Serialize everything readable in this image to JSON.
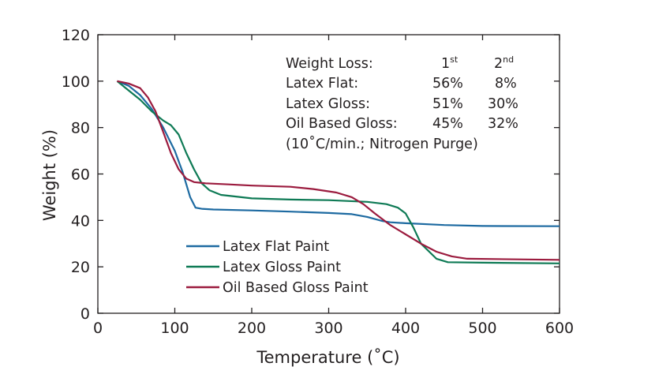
{
  "chart_data": {
    "type": "line",
    "xlabel": "Temperature (˚C)",
    "ylabel": "Weight (%)",
    "xlim": [
      0,
      600
    ],
    "ylim": [
      0,
      120
    ],
    "xticks": [
      "0",
      "100",
      "200",
      "300",
      "400",
      "500",
      "600"
    ],
    "yticks": [
      "0",
      "20",
      "40",
      "60",
      "80",
      "100",
      "120"
    ],
    "grid": false,
    "legend_position": "bottom-left",
    "series": [
      {
        "name": "Latex Flat Paint",
        "color": "#1d6aa1",
        "x": [
          25,
          40,
          55,
          70,
          85,
          100,
          110,
          120,
          127,
          135,
          150,
          200,
          250,
          300,
          330,
          350,
          370,
          380,
          400,
          450,
          500,
          600
        ],
        "y": [
          100,
          98,
          94,
          88,
          80,
          70,
          61,
          50,
          45.5,
          45,
          44.7,
          44.3,
          43.8,
          43.2,
          42.7,
          41.5,
          39.7,
          39.2,
          38.8,
          38,
          37.6,
          37.5
        ]
      },
      {
        "name": "Latex Gloss Paint",
        "color": "#0e7a55",
        "x": [
          25,
          40,
          55,
          70,
          85,
          95,
          105,
          115,
          125,
          135,
          145,
          160,
          200,
          250,
          300,
          350,
          375,
          390,
          400,
          410,
          420,
          440,
          455,
          500,
          600
        ],
        "y": [
          100,
          96,
          92,
          87,
          83,
          81,
          77,
          69,
          62,
          56,
          53,
          51,
          49.5,
          49,
          48.7,
          48,
          47,
          45.5,
          43,
          37,
          30,
          23.5,
          22,
          21.8,
          21.5
        ]
      },
      {
        "name": "Oil Based Gloss Paint",
        "color": "#9b1b3e",
        "x": [
          25,
          40,
          55,
          65,
          75,
          85,
          95,
          105,
          115,
          125,
          140,
          170,
          200,
          250,
          280,
          310,
          330,
          345,
          360,
          380,
          400,
          420,
          440,
          460,
          480,
          600
        ],
        "y": [
          100,
          99,
          97,
          93,
          87,
          78,
          69,
          62,
          58,
          56.5,
          56,
          55.5,
          55,
          54.5,
          53.5,
          52,
          50,
          47,
          43,
          38,
          34,
          30,
          26.5,
          24.5,
          23.5,
          23
        ]
      }
    ],
    "annotation": {
      "header_label": "Weight Loss:",
      "col1": {
        "base": "1",
        "sup": "st"
      },
      "col2": {
        "base": "2",
        "sup": "nd"
      },
      "rows": [
        {
          "label": "Latex Flat:",
          "v1": "56%",
          "v2": "8%"
        },
        {
          "label": "Latex Gloss:",
          "v1": "51%",
          "v2": "30%"
        },
        {
          "label": "Oil Based Gloss:",
          "v1": "45%",
          "v2": "32%"
        }
      ],
      "note": "(10˚C/min.; Nitrogen Purge)"
    }
  }
}
